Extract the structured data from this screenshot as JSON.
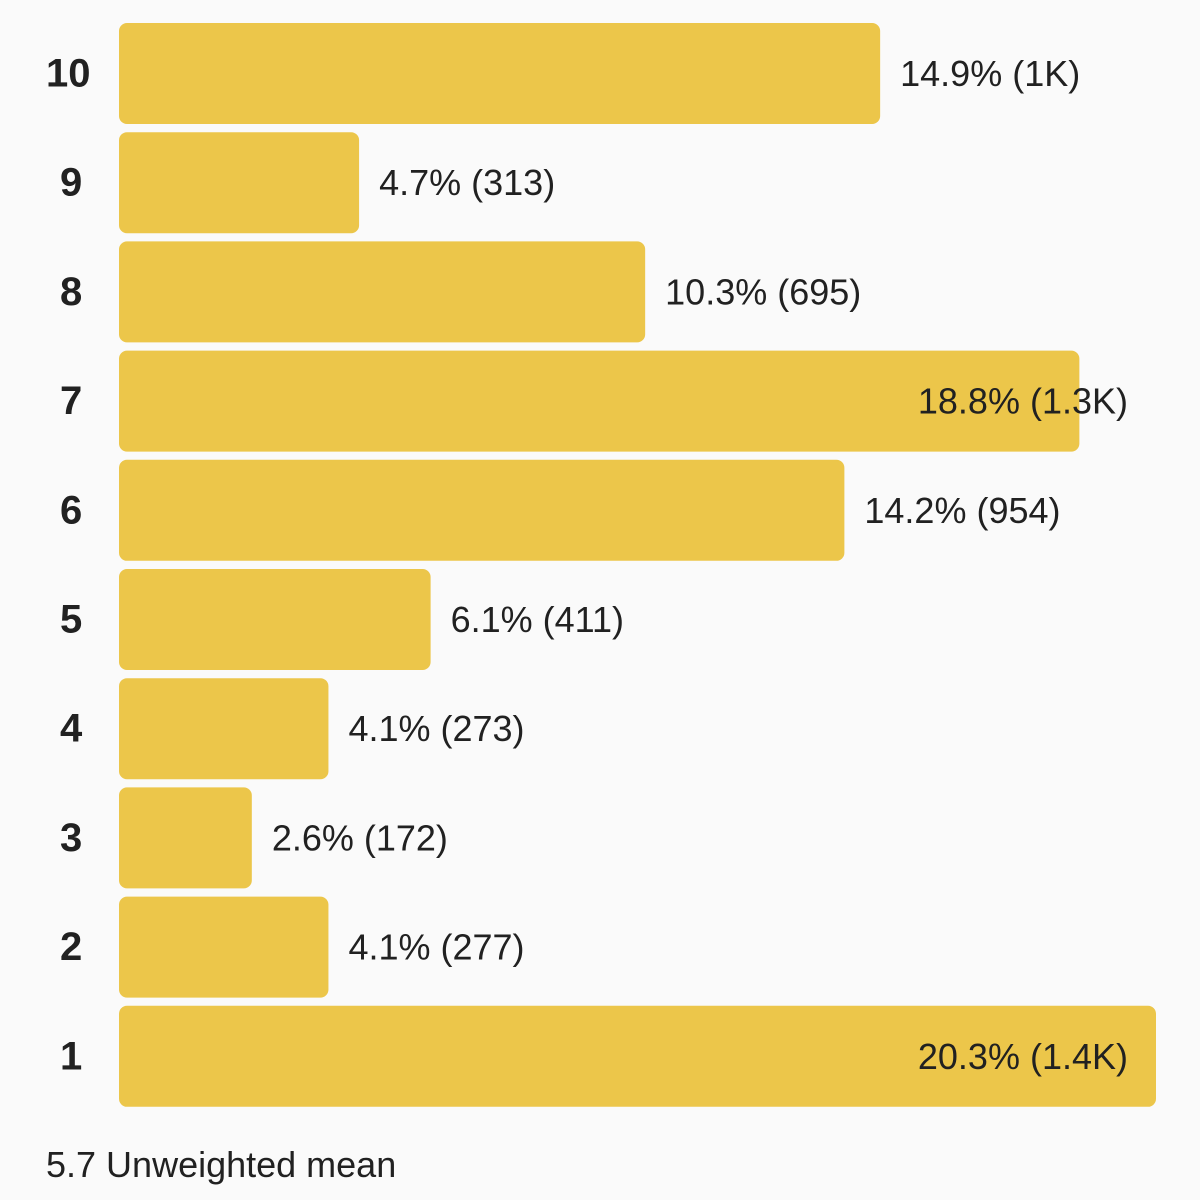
{
  "chart_data": {
    "type": "bar",
    "orientation": "horizontal",
    "categories": [
      "10",
      "9",
      "8",
      "7",
      "6",
      "5",
      "4",
      "3",
      "2",
      "1"
    ],
    "percent": [
      14.9,
      4.7,
      10.3,
      18.8,
      14.2,
      6.1,
      4.1,
      2.6,
      4.1,
      20.3
    ],
    "counts": [
      "1K",
      "313",
      "695",
      "1.3K",
      "954",
      "411",
      "273",
      "172",
      "277",
      "1.4K"
    ],
    "value_labels": [
      "14.9% (1K)",
      "4.7% (313)",
      "10.3% (695)",
      "18.8% (1.3K)",
      "14.2% (954)",
      "6.1% (411)",
      "4.1% (273)",
      "2.6% (172)",
      "4.1% (277)",
      "20.3% (1.4K)"
    ],
    "xlim": [
      0,
      20.3
    ],
    "bar_color": "#ecc64a",
    "grid": false,
    "legend": "none"
  },
  "footer": {
    "text": "5.7 Unweighted mean"
  }
}
